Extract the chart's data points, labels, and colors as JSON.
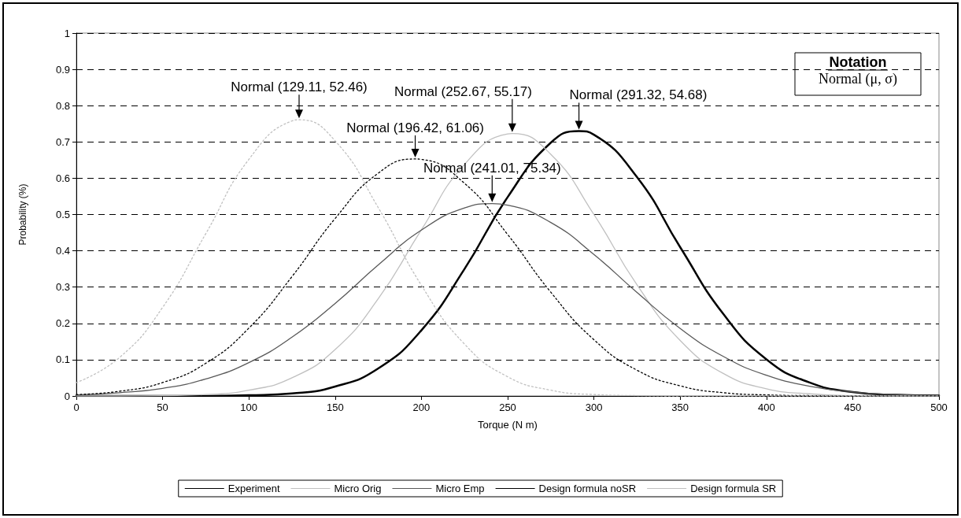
{
  "chart_data": {
    "type": "line",
    "xlabel": "Torque (N m)",
    "ylabel": "Probability (%)",
    "xlim": [
      0,
      500
    ],
    "xticks": [
      0,
      50,
      100,
      150,
      200,
      250,
      300,
      350,
      400,
      450,
      500
    ],
    "ylim": [
      0,
      1
    ],
    "yticks": [
      0,
      0.1,
      0.2,
      0.3,
      0.4,
      0.5,
      0.6,
      0.7,
      0.8,
      0.9,
      1
    ],
    "grid": "y",
    "legend": "bottom",
    "marker": "none",
    "series": [
      {
        "name": "Experiment",
        "color": "#000000",
        "line_style": "solid",
        "x": [
          0,
          25,
          50,
          75,
          100,
          125,
          150,
          175,
          200,
          225,
          250,
          275,
          291.32,
          300,
          325,
          350,
          375,
          400,
          425,
          450,
          475,
          500
        ],
        "values": [
          0,
          0,
          0,
          0,
          0.002,
          0.007,
          0.026,
          0.076,
          0.181,
          0.35,
          0.548,
          0.698,
          0.73,
          0.72,
          0.603,
          0.41,
          0.226,
          0.101,
          0.037,
          0.011,
          0.003,
          0.001
        ]
      },
      {
        "name": "Micro Orig",
        "color": "#c0c0c0",
        "line_style": "solid",
        "x": [
          0,
          25,
          50,
          75,
          100,
          125,
          150,
          175,
          200,
          225,
          250,
          252.67,
          275,
          300,
          325,
          350,
          375,
          400,
          425,
          450,
          475,
          500
        ],
        "values": [
          0,
          0,
          0.001,
          0.004,
          0.016,
          0.05,
          0.128,
          0.268,
          0.458,
          0.638,
          0.722,
          0.723,
          0.666,
          0.5,
          0.306,
          0.153,
          0.062,
          0.02,
          0.006,
          0.001,
          0,
          0
        ]
      },
      {
        "name": "Micro Emp",
        "color": "#595959",
        "line_style": "solid",
        "x": [
          0,
          25,
          50,
          75,
          100,
          125,
          150,
          175,
          200,
          225,
          241.01,
          250,
          275,
          300,
          325,
          350,
          375,
          400,
          425,
          450,
          475,
          500
        ],
        "values": [
          0.003,
          0.009,
          0.021,
          0.047,
          0.092,
          0.162,
          0.255,
          0.361,
          0.457,
          0.518,
          0.53,
          0.526,
          0.478,
          0.39,
          0.285,
          0.186,
          0.109,
          0.057,
          0.027,
          0.011,
          0.004,
          0.001
        ]
      },
      {
        "name": "Design formula noSR",
        "color": "#000000",
        "line_style": "dotted",
        "x": [
          0,
          25,
          50,
          75,
          100,
          125,
          150,
          175,
          196.42,
          200,
          225,
          250,
          275,
          300,
          325,
          350,
          375,
          400,
          425,
          450,
          475,
          500
        ],
        "values": [
          0.004,
          0.013,
          0.037,
          0.09,
          0.187,
          0.329,
          0.489,
          0.614,
          0.653,
          0.652,
          0.586,
          0.445,
          0.286,
          0.155,
          0.071,
          0.028,
          0.009,
          0.003,
          0.001,
          0,
          0,
          0
        ]
      },
      {
        "name": "Design formula SR",
        "color": "#c0c0c0",
        "line_style": "dotted",
        "x": [
          0,
          25,
          50,
          75,
          100,
          125,
          129.11,
          150,
          175,
          200,
          225,
          250,
          275,
          300,
          325,
          350,
          375,
          400,
          425,
          450,
          475,
          500
        ],
        "values": [
          0.037,
          0.106,
          0.244,
          0.447,
          0.652,
          0.758,
          0.761,
          0.703,
          0.519,
          0.305,
          0.143,
          0.053,
          0.016,
          0.004,
          0.001,
          0,
          0,
          0,
          0,
          0,
          0,
          0
        ]
      }
    ],
    "annotations": [
      {
        "text": "Normal (129.11, 52.46)",
        "x": 129.11,
        "y": 0.761
      },
      {
        "text": "Normal (196.42, 61.06)",
        "x": 196.42,
        "y": 0.653
      },
      {
        "text": "Normal (252.67, 55.17)",
        "x": 252.67,
        "y": 0.723
      },
      {
        "text": "Normal (291.32, 54.68)",
        "x": 291.32,
        "y": 0.73
      },
      {
        "text": "Normal (241.01, 75.34)",
        "x": 241.01,
        "y": 0.53
      },
      "Notation",
      "Normal (μ, σ)"
    ]
  }
}
